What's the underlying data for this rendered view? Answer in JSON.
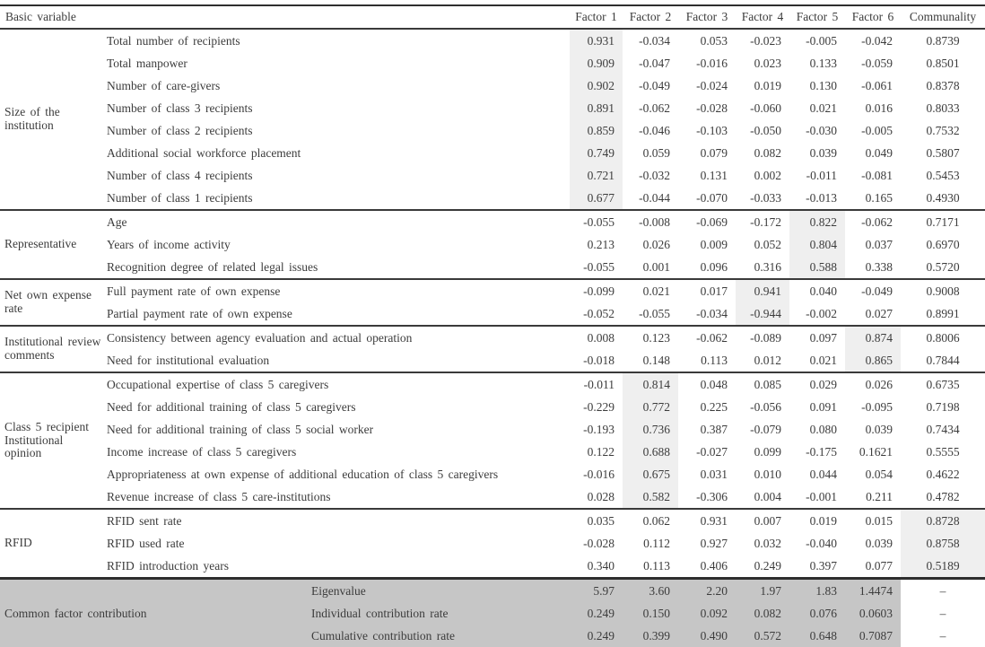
{
  "table": {
    "header": {
      "basic_variable": "Basic variable",
      "factors": [
        "Factor 1",
        "Factor 2",
        "Factor 3",
        "Factor 4",
        "Factor 5",
        "Factor 6"
      ],
      "communality": "Communality"
    },
    "colors": {
      "highlight_band": "#efefef",
      "contribution_band": "#c6c6c6",
      "rule_color": "#2e2e2e"
    },
    "groups": [
      {
        "label": "Size of the institution",
        "highlight": 0,
        "rows": [
          {
            "variable": "Total number of recipients",
            "values": [
              "0.931",
              "-0.034",
              "0.053",
              "-0.023",
              "-0.005",
              "-0.042"
            ],
            "communality": "0.8739"
          },
          {
            "variable": "Total manpower",
            "values": [
              "0.909",
              "-0.047",
              "-0.016",
              "0.023",
              "0.133",
              "-0.059"
            ],
            "communality": "0.8501"
          },
          {
            "variable": "Number of care-givers",
            "values": [
              "0.902",
              "-0.049",
              "-0.024",
              "0.019",
              "0.130",
              "-0.061"
            ],
            "communality": "0.8378"
          },
          {
            "variable": "Number of class 3 recipients",
            "values": [
              "0.891",
              "-0.062",
              "-0.028",
              "-0.060",
              "0.021",
              "0.016"
            ],
            "communality": "0.8033"
          },
          {
            "variable": "Number of class 2 recipients",
            "values": [
              "0.859",
              "-0.046",
              "-0.103",
              "-0.050",
              "-0.030",
              "-0.005"
            ],
            "communality": "0.7532"
          },
          {
            "variable": "Additional social workforce placement",
            "values": [
              "0.749",
              "0.059",
              "0.079",
              "0.082",
              "0.039",
              "0.049"
            ],
            "communality": "0.5807"
          },
          {
            "variable": "Number of class 4 recipients",
            "values": [
              "0.721",
              "-0.032",
              "0.131",
              "0.002",
              "-0.011",
              "-0.081"
            ],
            "communality": "0.5453"
          },
          {
            "variable": "Number of class 1 recipients",
            "values": [
              "0.677",
              "-0.044",
              "-0.070",
              "-0.033",
              "-0.013",
              "0.165"
            ],
            "communality": "0.4930"
          }
        ]
      },
      {
        "label": "Representative",
        "highlight": 4,
        "rows": [
          {
            "variable": "Age",
            "values": [
              "-0.055",
              "-0.008",
              "-0.069",
              "-0.172",
              "0.822",
              "-0.062"
            ],
            "communality": "0.7171"
          },
          {
            "variable": "Years of income activity",
            "values": [
              "0.213",
              "0.026",
              "0.009",
              "0.052",
              "0.804",
              "0.037"
            ],
            "communality": "0.6970"
          },
          {
            "variable": "Recognition degree of related legal issues",
            "values": [
              "-0.055",
              "0.001",
              "0.096",
              "0.316",
              "0.588",
              "0.338"
            ],
            "communality": "0.5720"
          }
        ]
      },
      {
        "label": "Net own expense rate",
        "highlight": 3,
        "rows": [
          {
            "variable": "Full payment rate of own expense",
            "values": [
              "-0.099",
              "0.021",
              "0.017",
              "0.941",
              "0.040",
              "-0.049"
            ],
            "communality": "0.9008"
          },
          {
            "variable": "Partial payment rate of own expense",
            "values": [
              "-0.052",
              "-0.055",
              "-0.034",
              "-0.944",
              "-0.002",
              "0.027"
            ],
            "communality": "0.8991"
          }
        ]
      },
      {
        "label": "Institutional review comments",
        "highlight": 5,
        "rows": [
          {
            "variable": "Consistency between agency evaluation and actual operation",
            "values": [
              "0.008",
              "0.123",
              "-0.062",
              "-0.089",
              "0.097",
              "0.874"
            ],
            "communality": "0.8006"
          },
          {
            "variable": "Need for institutional evaluation",
            "values": [
              "-0.018",
              "0.148",
              "0.113",
              "0.012",
              "0.021",
              "0.865"
            ],
            "communality": "0.7844"
          }
        ]
      },
      {
        "label": "Class 5 recipient Institutional opinion",
        "highlight": 1,
        "rows": [
          {
            "variable": "Occupational expertise of class 5 caregivers",
            "values": [
              "-0.011",
              "0.814",
              "0.048",
              "0.085",
              "0.029",
              "0.026"
            ],
            "communality": "0.6735"
          },
          {
            "variable": "Need for additional training of class 5 caregivers",
            "values": [
              "-0.229",
              "0.772",
              "0.225",
              "-0.056",
              "0.091",
              "-0.095"
            ],
            "communality": "0.7198"
          },
          {
            "variable": "Need for additional training of class 5 social worker",
            "values": [
              "-0.193",
              "0.736",
              "0.387",
              "-0.079",
              "0.080",
              "0.039"
            ],
            "communality": "0.7434"
          },
          {
            "variable": "Income increase  of class 5 caregivers",
            "values": [
              "0.122",
              "0.688",
              "-0.027",
              "0.099",
              "-0.175",
              "0.1621"
            ],
            "communality": "0.5555"
          },
          {
            "variable": "Appropriateness at own expense of additional education of class 5 caregivers",
            "values": [
              "-0.016",
              "0.675",
              "0.031",
              "0.010",
              "0.044",
              "0.054"
            ],
            "communality": "0.4622"
          },
          {
            "variable": "Revenue increase of class 5 care-institutions",
            "values": [
              "0.028",
              "0.582",
              "-0.306",
              "0.004",
              "-0.001",
              "0.211"
            ],
            "communality": "0.4782"
          }
        ]
      },
      {
        "label": "RFID",
        "highlight": "comm",
        "rows": [
          {
            "variable": "RFID sent rate",
            "values": [
              "0.035",
              "0.062",
              "0.931",
              "0.007",
              "0.019",
              "0.015"
            ],
            "communality": "0.8728"
          },
          {
            "variable": "RFID used rate",
            "values": [
              "-0.028",
              "0.112",
              "0.927",
              "0.032",
              "-0.040",
              "0.039"
            ],
            "communality": "0.8758"
          },
          {
            "variable": "RFID introduction years",
            "values": [
              "0.340",
              "0.113",
              "0.406",
              "0.249",
              "0.397",
              "0.077"
            ],
            "communality": "0.5189"
          }
        ]
      }
    ],
    "contribution": {
      "label": "Common factor contribution",
      "rows": [
        {
          "label": "Eigenvalue",
          "values": [
            "5.97",
            "3.60",
            "2.20",
            "1.97",
            "1.83",
            "1.4474"
          ],
          "communality": "–"
        },
        {
          "label": "Individual contribution rate",
          "values": [
            "0.249",
            "0.150",
            "0.092",
            "0.082",
            "0.076",
            "0.0603"
          ],
          "communality": "–"
        },
        {
          "label": "Cumulative contribution rate",
          "values": [
            "0.249",
            "0.399",
            "0.490",
            "0.572",
            "0.648",
            "0.7087"
          ],
          "communality": "–"
        }
      ]
    }
  }
}
